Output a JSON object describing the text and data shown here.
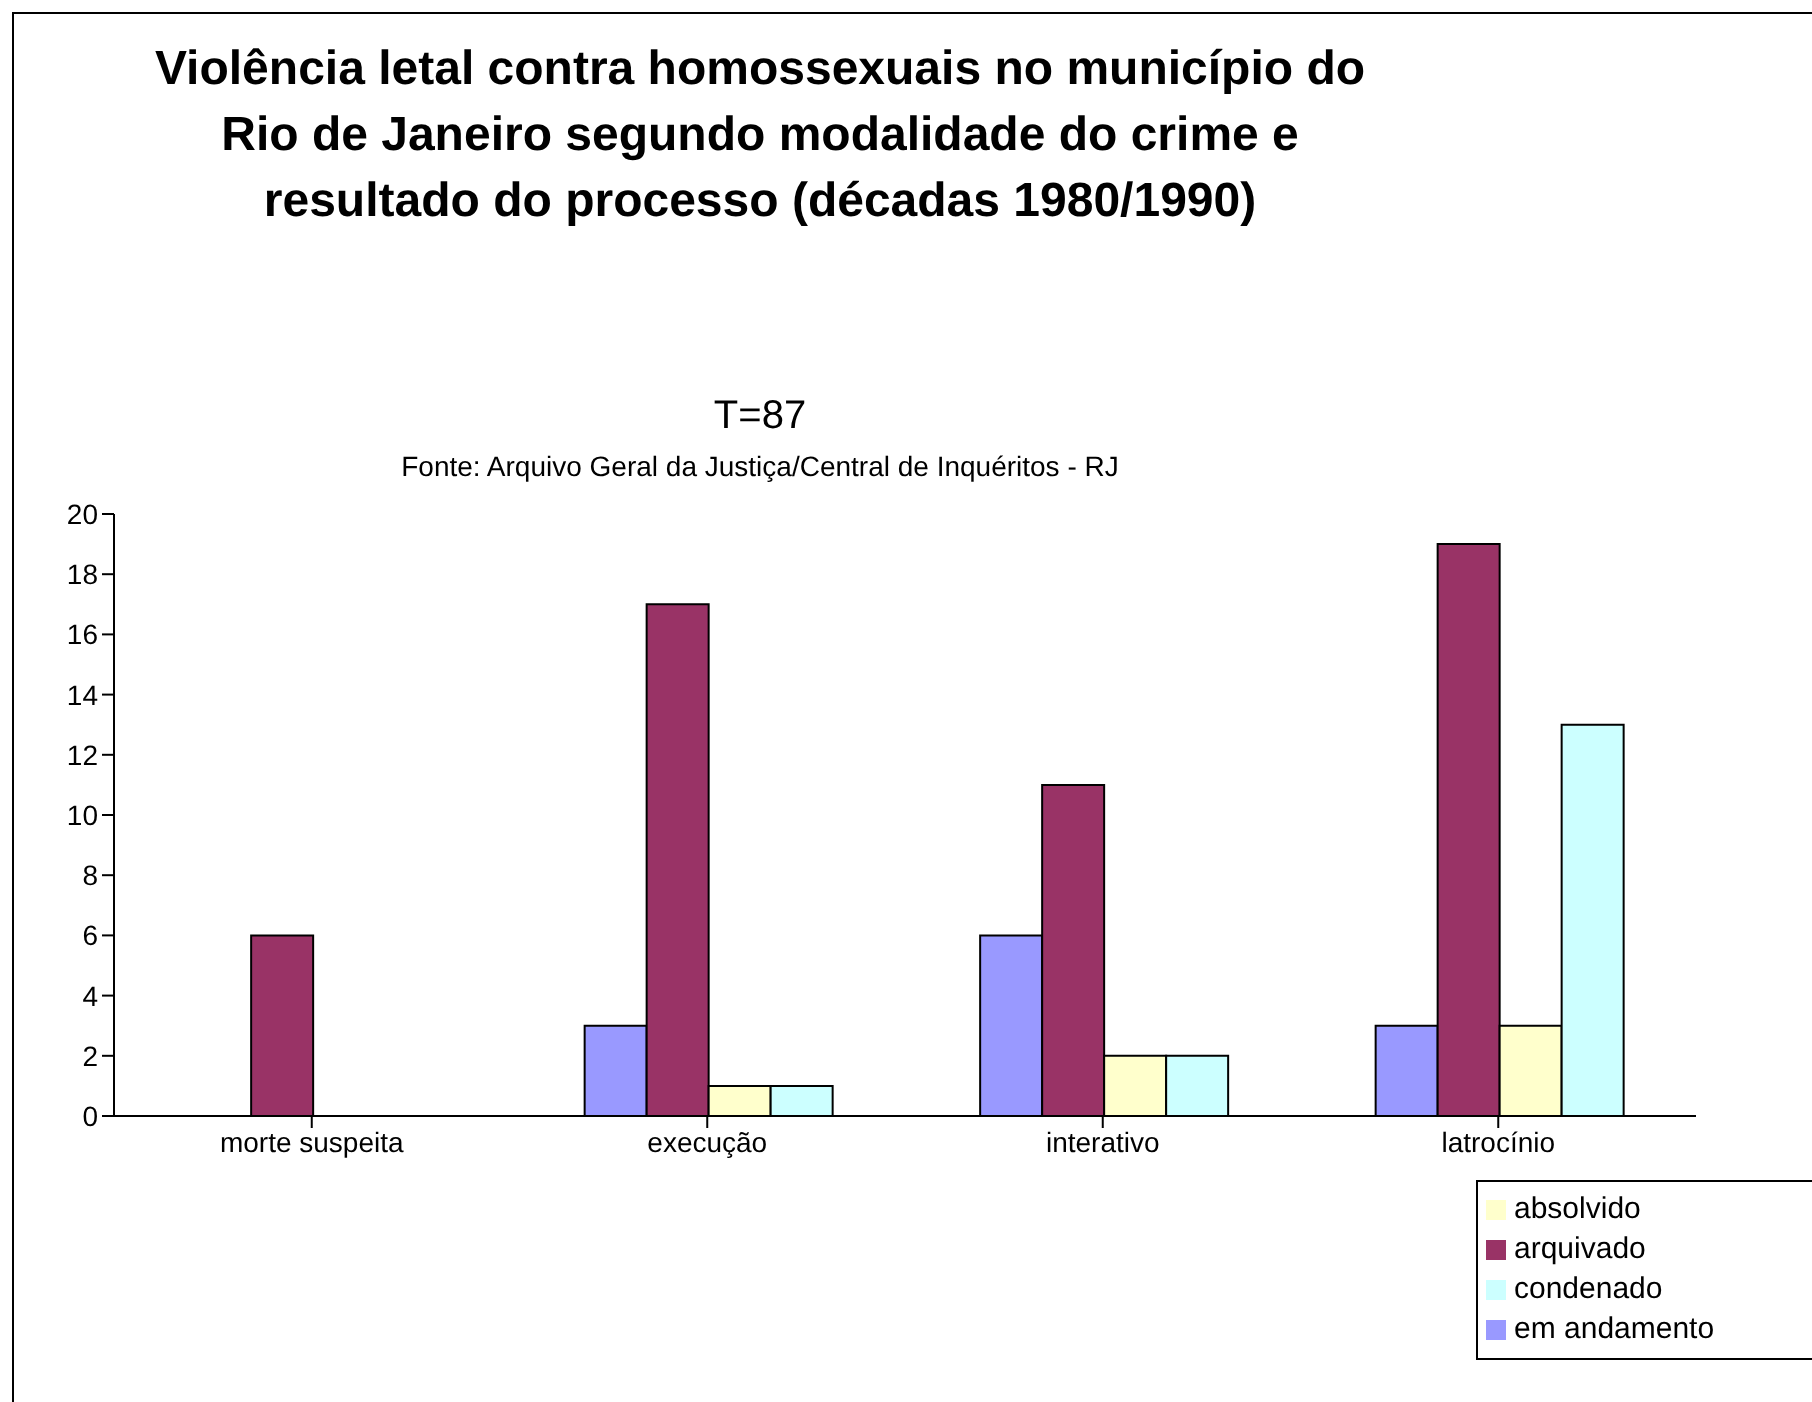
{
  "chart_data": {
    "type": "bar",
    "title": "Violência letal contra homossexuais no município do Rio de Janeiro segundo modalidade do crime e resultado do processo (décadas 1980/1990)",
    "subtitle": "T=87",
    "annotations": [
      "Fonte: Arquivo Geral da Justiça/Central de Inquéritos - RJ"
    ],
    "categories": [
      "morte suspeita",
      "execução",
      "interativo",
      "latrocínio"
    ],
    "series": [
      {
        "name": "em andamento",
        "color": "#9999ff",
        "values": [
          0,
          3,
          6,
          3
        ]
      },
      {
        "name": "arquivado",
        "color": "#993366",
        "values": [
          6,
          17,
          11,
          19
        ]
      },
      {
        "name": "absolvido",
        "color": "#ffffcc",
        "values": [
          0,
          1,
          2,
          3
        ]
      },
      {
        "name": "condenado",
        "color": "#ccffff",
        "values": [
          0,
          1,
          2,
          13
        ]
      }
    ],
    "ylim": [
      0,
      20
    ],
    "yticks": [
      0,
      2,
      4,
      6,
      8,
      10,
      12,
      14,
      16,
      18,
      20
    ],
    "grid": false,
    "legend": "bottom right"
  }
}
